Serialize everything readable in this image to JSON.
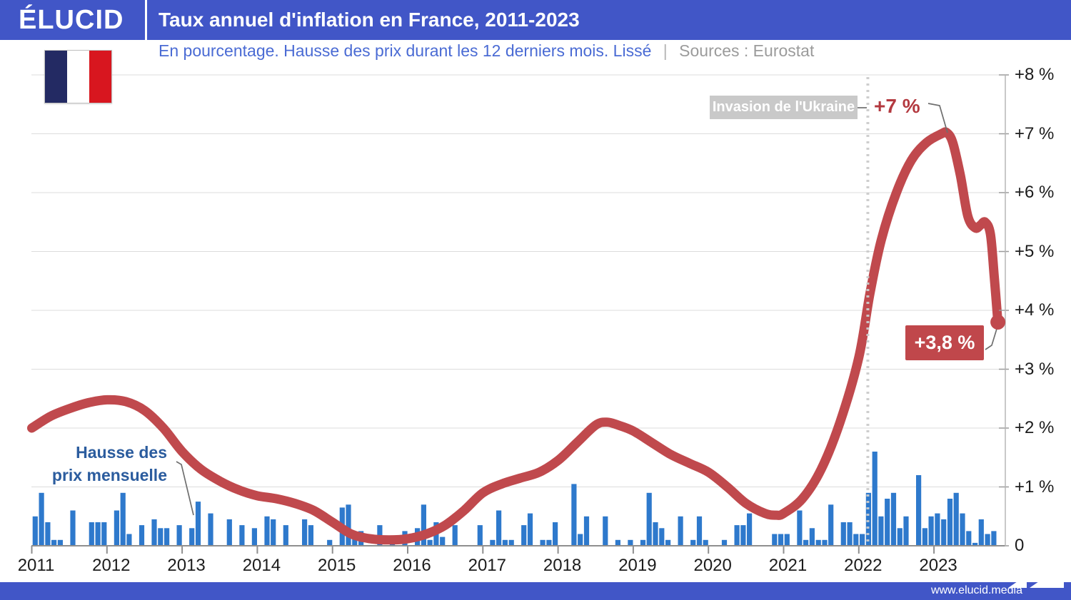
{
  "header": {
    "logo": "ÉLUCID",
    "title": "Taux annuel d'inflation en France, 2011-2023"
  },
  "subtitle": {
    "text": "En pourcentage. Hausse des prix durant les 12 derniers mois. Lissé",
    "divider": "|",
    "source": "Sources : Eurostat"
  },
  "annotations": {
    "invasion_label": "Invasion de l'Ukraine",
    "peak_label": "+7 %",
    "last_value_label": "+3,8 %",
    "bars_label": {
      "line1": "Hausse des",
      "line2": "prix mensuelle"
    }
  },
  "footer": {
    "url": "www.elucid.media"
  },
  "flag": {
    "name": "france-flag",
    "colors": [
      "#232a63",
      "#ffffff",
      "#d8161f"
    ]
  },
  "colors": {
    "header_blue": "#4156c7",
    "bar_blue": "#2e79cc",
    "line_red": "#c0494d",
    "grid_gray": "#dcdcdc",
    "axis_gray": "#8f8f8f",
    "dotted_gray": "#cccccc"
  },
  "chart_data": {
    "type": "line+bar",
    "title": "Taux annuel d'inflation en France, 2011-2023",
    "unit": "percent",
    "grid": "horizontal",
    "y_axis": {
      "min": 0,
      "max": 8,
      "position": "right",
      "tick_values": [
        8,
        7,
        6,
        5,
        4,
        3,
        2,
        1,
        0
      ],
      "tick_labels": [
        "+8 %",
        "+7 %",
        "+6 %",
        "+5 %",
        "+4 %",
        "+3 %",
        "+2 %",
        "+1 %",
        "0"
      ]
    },
    "x_axis": {
      "years": [
        2011,
        2012,
        2013,
        2014,
        2015,
        2016,
        2017,
        2018,
        2019,
        2020,
        2021,
        2022,
        2023
      ]
    },
    "line_series": {
      "name": "Taux annuel d'inflation (lissé)",
      "color": "#c0494d",
      "points": [
        [
          2011.0,
          2.0
        ],
        [
          2011.25,
          2.2
        ],
        [
          2011.5,
          2.33
        ],
        [
          2011.75,
          2.43
        ],
        [
          2012.0,
          2.48
        ],
        [
          2012.25,
          2.45
        ],
        [
          2012.5,
          2.3
        ],
        [
          2012.75,
          2.0
        ],
        [
          2013.0,
          1.6
        ],
        [
          2013.25,
          1.3
        ],
        [
          2013.5,
          1.1
        ],
        [
          2013.75,
          0.95
        ],
        [
          2014.0,
          0.85
        ],
        [
          2014.25,
          0.8
        ],
        [
          2014.5,
          0.72
        ],
        [
          2014.75,
          0.6
        ],
        [
          2015.0,
          0.4
        ],
        [
          2015.25,
          0.2
        ],
        [
          2015.5,
          0.12
        ],
        [
          2015.75,
          0.1
        ],
        [
          2016.0,
          0.12
        ],
        [
          2016.25,
          0.2
        ],
        [
          2016.5,
          0.35
        ],
        [
          2016.75,
          0.6
        ],
        [
          2017.0,
          0.9
        ],
        [
          2017.25,
          1.05
        ],
        [
          2017.5,
          1.15
        ],
        [
          2017.75,
          1.25
        ],
        [
          2018.0,
          1.45
        ],
        [
          2018.25,
          1.75
        ],
        [
          2018.5,
          2.05
        ],
        [
          2018.65,
          2.1
        ],
        [
          2018.8,
          2.05
        ],
        [
          2019.0,
          1.95
        ],
        [
          2019.25,
          1.75
        ],
        [
          2019.5,
          1.55
        ],
        [
          2019.75,
          1.4
        ],
        [
          2020.0,
          1.25
        ],
        [
          2020.25,
          1.0
        ],
        [
          2020.5,
          0.72
        ],
        [
          2020.75,
          0.55
        ],
        [
          2020.9,
          0.52
        ],
        [
          2021.0,
          0.55
        ],
        [
          2021.25,
          0.8
        ],
        [
          2021.5,
          1.3
        ],
        [
          2021.75,
          2.1
        ],
        [
          2022.0,
          3.2
        ],
        [
          2022.15,
          4.3
        ],
        [
          2022.3,
          5.2
        ],
        [
          2022.5,
          6.0
        ],
        [
          2022.7,
          6.55
        ],
        [
          2022.9,
          6.85
        ],
        [
          2023.1,
          7.0
        ],
        [
          2023.17,
          7.02
        ],
        [
          2023.25,
          6.85
        ],
        [
          2023.35,
          6.3
        ],
        [
          2023.45,
          5.6
        ],
        [
          2023.55,
          5.4
        ],
        [
          2023.62,
          5.45
        ],
        [
          2023.68,
          5.5
        ],
        [
          2023.75,
          5.3
        ],
        [
          2023.8,
          4.6
        ],
        [
          2023.85,
          3.8
        ]
      ],
      "end_value": 3.8,
      "peak_value": 7.0
    },
    "bar_series": {
      "name": "Hausse des prix mensuelle",
      "color": "#2e79cc",
      "start_month": "2011-01",
      "values": [
        0.5,
        0.9,
        0.4,
        0.1,
        0.1,
        0,
        0.6,
        0,
        0,
        0.4,
        0.4,
        0.4,
        0,
        0.6,
        0.9,
        0.2,
        0,
        0.35,
        0,
        0.45,
        0.3,
        0.3,
        0,
        0.35,
        0,
        0.3,
        0.75,
        0,
        0.55,
        0,
        0,
        0.45,
        0,
        0.35,
        0,
        0.3,
        0,
        0.5,
        0.45,
        0,
        0.35,
        0,
        0,
        0.45,
        0.35,
        0,
        0,
        0.1,
        0,
        0.65,
        0.7,
        0.15,
        0.25,
        0,
        0,
        0.35,
        0,
        0.1,
        0,
        0.25,
        0,
        0.3,
        0.7,
        0.1,
        0.4,
        0.15,
        0,
        0.35,
        0,
        0,
        0,
        0.35,
        0,
        0.1,
        0.6,
        0.1,
        0.1,
        0,
        0.35,
        0.55,
        0,
        0.1,
        0.1,
        0.4,
        0,
        0,
        1.05,
        0.2,
        0.5,
        0,
        0,
        0.5,
        0,
        0.1,
        0,
        0.1,
        0,
        0.1,
        0.9,
        0.4,
        0.3,
        0.1,
        0,
        0.5,
        0,
        0.1,
        0.5,
        0.1,
        0,
        0,
        0.1,
        0,
        0.35,
        0.35,
        0.55,
        0,
        0,
        0,
        0.2,
        0.2,
        0.2,
        0,
        0.6,
        0.1,
        0.3,
        0.1,
        0.1,
        0.7,
        0,
        0.4,
        0.4,
        0.2,
        0.2,
        0.9,
        1.6,
        0.5,
        0.8,
        0.9,
        0.3,
        0.5,
        0,
        1.2,
        0.3,
        0.5,
        0.55,
        0.45,
        0.8,
        0.9,
        0.55,
        0.25,
        0.05,
        0.45,
        0.2,
        0.25
      ]
    },
    "event_line": {
      "x": 2022.12,
      "label": "Invasion de l'Ukraine",
      "style": "dotted"
    },
    "legend_position": "none"
  }
}
